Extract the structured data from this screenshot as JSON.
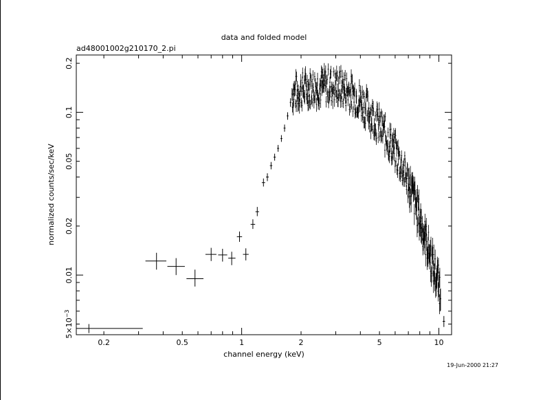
{
  "chart_data": {
    "type": "scatter",
    "title": "data and folded model",
    "subtitle": "ad48001002g210170_2.pi",
    "xlabel": "channel energy (keV)",
    "ylabel": "normalized counts/sec/keV",
    "timestamp": "19-Jun-2000 21:27",
    "x_scale": "log",
    "y_scale": "log",
    "xlim": [
      0.145,
      11.6
    ],
    "ylim": [
      0.0043,
      0.225
    ],
    "x_ticks": [
      {
        "value": 0.2,
        "label": "0.2"
      },
      {
        "value": 0.5,
        "label": "0.5"
      },
      {
        "value": 1,
        "label": "1"
      },
      {
        "value": 2,
        "label": "2"
      },
      {
        "value": 5,
        "label": "5"
      },
      {
        "value": 10,
        "label": "10"
      }
    ],
    "y_ticks": [
      {
        "value": 0.005,
        "label": "5×10",
        "exp": "−3"
      },
      {
        "value": 0.01,
        "label": "0.01"
      },
      {
        "value": 0.02,
        "label": "0.02"
      },
      {
        "value": 0.05,
        "label": "0.05"
      },
      {
        "value": 0.1,
        "label": "0.1"
      },
      {
        "value": 0.2,
        "label": "0.2"
      }
    ],
    "grid": false,
    "legend": "none",
    "series": [
      {
        "points": [
          {
            "x": 0.168,
            "xlo": 0.145,
            "xhi": 0.315,
            "y": 0.0047,
            "ylo": 0.0044,
            "yhi": 0.005
          },
          {
            "x": 0.37,
            "xlo": 0.325,
            "xhi": 0.415,
            "y": 0.0122,
            "ylo": 0.0108,
            "yhi": 0.0137
          },
          {
            "x": 0.465,
            "xlo": 0.42,
            "xhi": 0.515,
            "y": 0.0113,
            "ylo": 0.01,
            "yhi": 0.0127
          },
          {
            "x": 0.58,
            "xlo": 0.525,
            "xhi": 0.64,
            "y": 0.0095,
            "ylo": 0.0085,
            "yhi": 0.0108
          },
          {
            "x": 0.7,
            "xlo": 0.655,
            "xhi": 0.745,
            "y": 0.0134,
            "ylo": 0.0122,
            "yhi": 0.0147
          },
          {
            "x": 0.8,
            "xlo": 0.76,
            "xhi": 0.845,
            "y": 0.0133,
            "ylo": 0.0121,
            "yhi": 0.0145
          },
          {
            "x": 0.89,
            "xlo": 0.855,
            "xhi": 0.93,
            "y": 0.0127,
            "ylo": 0.0115,
            "yhi": 0.0139
          },
          {
            "x": 0.975,
            "xlo": 0.945,
            "xhi": 1.005,
            "y": 0.0172,
            "ylo": 0.016,
            "yhi": 0.0185
          },
          {
            "x": 1.05,
            "xlo": 1.015,
            "xhi": 1.085,
            "y": 0.0134,
            "ylo": 0.0123,
            "yhi": 0.0146
          },
          {
            "x": 1.14,
            "xlo": 1.11,
            "xhi": 1.17,
            "y": 0.0205,
            "ylo": 0.0192,
            "yhi": 0.022
          },
          {
            "x": 1.2,
            "xlo": 1.175,
            "xhi": 1.225,
            "y": 0.0245,
            "ylo": 0.023,
            "yhi": 0.0262
          },
          {
            "x": 1.29,
            "xlo": 1.265,
            "xhi": 1.315,
            "y": 0.037,
            "ylo": 0.035,
            "yhi": 0.0392
          },
          {
            "x": 1.35,
            "xlo": 1.328,
            "xhi": 1.372,
            "y": 0.04,
            "ylo": 0.0378,
            "yhi": 0.0422
          },
          {
            "x": 1.41,
            "xlo": 1.39,
            "xhi": 1.43,
            "y": 0.047,
            "ylo": 0.0446,
            "yhi": 0.0495
          },
          {
            "x": 1.47,
            "xlo": 1.45,
            "xhi": 1.49,
            "y": 0.053,
            "ylo": 0.0505,
            "yhi": 0.0557
          },
          {
            "x": 1.53,
            "xlo": 1.512,
            "xhi": 1.548,
            "y": 0.06,
            "ylo": 0.0572,
            "yhi": 0.063
          },
          {
            "x": 1.59,
            "xlo": 1.572,
            "xhi": 1.608,
            "y": 0.069,
            "ylo": 0.0658,
            "yhi": 0.0724
          },
          {
            "x": 1.65,
            "xlo": 1.632,
            "xhi": 1.668,
            "y": 0.08,
            "ylo": 0.076,
            "yhi": 0.084
          },
          {
            "x": 1.71,
            "xlo": 1.692,
            "xhi": 1.728,
            "y": 0.095,
            "ylo": 0.09,
            "yhi": 0.1
          },
          {
            "x": 1.77,
            "xlo": 1.752,
            "xhi": 1.788,
            "y": 0.115,
            "ylo": 0.108,
            "yhi": 0.122
          }
        ]
      }
    ],
    "dense_curve": {
      "x": [
        1.8,
        1.85,
        1.9,
        2.0,
        2.1,
        2.2,
        2.35,
        2.5,
        2.7,
        2.9,
        3.1,
        3.3,
        3.5,
        3.8,
        4.1,
        4.4,
        4.7,
        5.0,
        5.4,
        5.8,
        6.2,
        6.6,
        7.0,
        7.4,
        7.8,
        8.2,
        8.6,
        9.0,
        9.4,
        9.8,
        10.2
      ],
      "y": [
        0.13,
        0.135,
        0.132,
        0.138,
        0.14,
        0.142,
        0.143,
        0.144,
        0.146,
        0.145,
        0.143,
        0.14,
        0.135,
        0.125,
        0.115,
        0.103,
        0.092,
        0.082,
        0.072,
        0.062,
        0.053,
        0.045,
        0.037,
        0.031,
        0.025,
        0.02,
        0.0165,
        0.0135,
        0.0112,
        0.0095,
        0.0082
      ],
      "scatter": 0.22,
      "samples": 420
    },
    "high_points": [
      {
        "x": 10.6,
        "xlo": 10.45,
        "xhi": 10.75,
        "y": 0.0052,
        "ylo": 0.0048,
        "yhi": 0.0056
      }
    ]
  }
}
